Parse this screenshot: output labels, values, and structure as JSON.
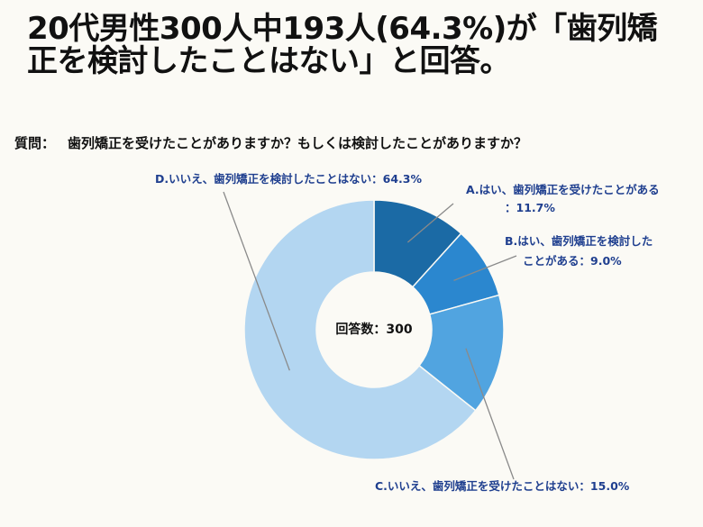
{
  "title": "20代男性300人中193人(64.3%)が「歯列矯正を検討したことはない」と回答。",
  "question": {
    "label": "質問：",
    "text": "歯列矯正を受けたことがありますか？もしくは検討したことがありますか？"
  },
  "chart_data": {
    "type": "pie",
    "donut": true,
    "center_label": "回答数：300",
    "slices": [
      {
        "label_lines": [
          "A.はい、歯列矯正を受けたことがある",
          "：11.7%"
        ],
        "value": 11.7,
        "color": "#1b6aa5"
      },
      {
        "label_lines": [
          "B.はい、歯列矯正を検討した",
          "ことがある：9.0%"
        ],
        "value": 9.0,
        "color": "#2b87cf"
      },
      {
        "label_lines": [
          "C.いいえ、歯列矯正を受けたことはない：15.0%"
        ],
        "value": 15.0,
        "color": "#51a4e0"
      },
      {
        "label_lines": [
          "D.いいえ、歯列矯正を検討したことはない：64.3%"
        ],
        "value": 64.3,
        "color": "#b3d6f1"
      }
    ]
  }
}
